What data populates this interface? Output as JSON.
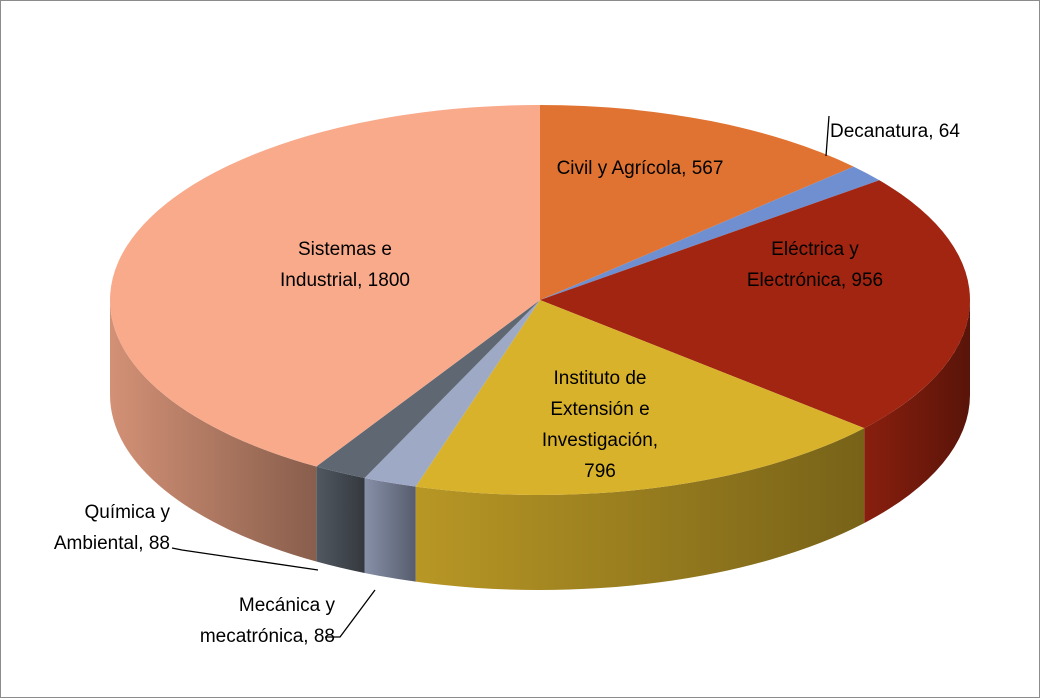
{
  "chart_data": {
    "type": "pie3d",
    "values": [
      567,
      64,
      956,
      796,
      88,
      88,
      1800
    ],
    "value_labels": [
      "Civil y Agrícola, 567",
      "Decanatura, 64",
      "Eléctrica y Electrónica, 956",
      "Instituto de Extensión e Investigación, 796",
      "Mecánica y mecatrónica, 88",
      "Química y Ambiental, 88",
      "Sistemas e Industrial, 1800"
    ],
    "colors": [
      "#e07331",
      "#6f8fd0",
      "#a12511",
      "#d8b22b",
      "#9ea9c6",
      "#5f6872",
      "#f8aa8b"
    ]
  }
}
